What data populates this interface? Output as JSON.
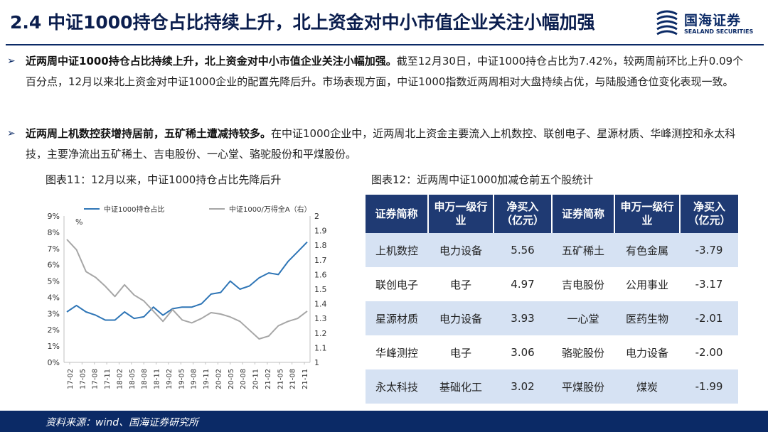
{
  "header": {
    "title": "2.4 中证1000持仓占比持续上升，北上资金对中小市值企业关注小幅加强",
    "logo_cn": "国海证券",
    "logo_en": "SEALAND SECURITIES"
  },
  "bullets": [
    {
      "bold": "近两周中证1000持仓占比持续上升，北上资金对中小市值企业关注小幅加强。",
      "text": "截至12月30日，中证1000持仓占比为7.42%，较两周前环比上升0.09个百分点，12月以来北上资金对中证1000企业的配置先降后升。市场表现方面，中证1000指数近两周相对大盘持续占优，与陆股通仓位变化表现一致。"
    },
    {
      "bold": "近两周上机数控获增持居前，五矿稀土遭减持较多。",
      "text": "在中证1000企业中，近两周北上资金主要流入上机数控、联创电子、星源材质、华峰测控和永太科技，主要净流出五矿稀土、吉电股份、一心堂、骆驼股份和平煤股份。"
    }
  ],
  "chart_caption": "图表11：12月以来，中证1000持仓占比先降后升",
  "table_caption": "图表12：近两周中证1000加减仓前五个股统计",
  "chart_data": {
    "type": "line",
    "unit_label": "%",
    "x_ticks": [
      "17-02",
      "17-05",
      "17-08",
      "17-11",
      "18-02",
      "18-05",
      "18-08",
      "18-11",
      "19-02",
      "19-05",
      "19-08",
      "19-11",
      "20-02",
      "20-05",
      "20-08",
      "20-11",
      "21-02",
      "21-05",
      "21-08",
      "21-11"
    ],
    "y_left_ticks": [
      "0%",
      "1%",
      "2%",
      "3%",
      "4%",
      "5%",
      "6%",
      "7%",
      "8%",
      "9%"
    ],
    "y_right_ticks": [
      "1",
      "1.1",
      "1.2",
      "1.3",
      "1.4",
      "1.5",
      "1.6",
      "1.7",
      "1.8",
      "1.9",
      "2"
    ],
    "ylim_left": [
      0,
      9
    ],
    "ylim_right": [
      1,
      2
    ],
    "series": [
      {
        "name": "中证1000持仓占比",
        "axis": "left",
        "color": "#2e75b6",
        "values": [
          3.1,
          3.5,
          3.1,
          2.9,
          2.6,
          2.6,
          3.1,
          2.7,
          2.8,
          3.4,
          2.9,
          3.3,
          3.4,
          3.4,
          3.6,
          4.2,
          4.3,
          5.0,
          4.5,
          4.7,
          5.2,
          5.5,
          5.4,
          6.2,
          6.8,
          7.4
        ]
      },
      {
        "name": "中证1000/万得全A（右）",
        "axis": "right",
        "color": "#a6a6a6",
        "values": [
          1.84,
          1.77,
          1.62,
          1.58,
          1.52,
          1.45,
          1.53,
          1.46,
          1.42,
          1.35,
          1.28,
          1.36,
          1.29,
          1.27,
          1.3,
          1.34,
          1.33,
          1.31,
          1.28,
          1.22,
          1.16,
          1.18,
          1.25,
          1.28,
          1.3,
          1.35
        ]
      }
    ]
  },
  "table": {
    "headers": [
      "证券简称",
      "申万一级行业",
      "净买入（亿元）",
      "证券简称",
      "申万一级行业",
      "净买入（亿元）"
    ],
    "rows": [
      [
        "上机数控",
        "电力设备",
        "5.56",
        "五矿稀土",
        "有色金属",
        "-3.79"
      ],
      [
        "联创电子",
        "电子",
        "4.97",
        "吉电股份",
        "公用事业",
        "-3.17"
      ],
      [
        "星源材质",
        "电力设备",
        "3.93",
        "一心堂",
        "医药生物",
        "-2.01"
      ],
      [
        "华峰测控",
        "电子",
        "3.06",
        "骆驼股份",
        "电力设备",
        "-2.00"
      ],
      [
        "永太科技",
        "基础化工",
        "3.02",
        "平煤股份",
        "煤炭",
        "-1.99"
      ]
    ]
  },
  "footer": {
    "source": "资料来源：wind、国海证券研究所"
  }
}
